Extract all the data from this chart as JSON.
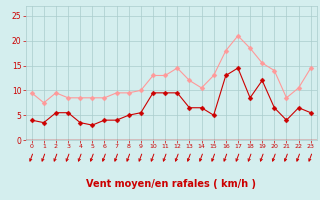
{
  "x": [
    0,
    1,
    2,
    3,
    4,
    5,
    6,
    7,
    8,
    9,
    10,
    11,
    12,
    13,
    14,
    15,
    16,
    17,
    18,
    19,
    20,
    21,
    22,
    23
  ],
  "wind_avg": [
    4.0,
    3.5,
    5.5,
    5.5,
    3.5,
    3.0,
    4.0,
    4.0,
    5.0,
    5.5,
    9.5,
    9.5,
    9.5,
    6.5,
    6.5,
    5.0,
    13.0,
    14.5,
    8.5,
    12.0,
    6.5,
    4.0,
    6.5,
    5.5
  ],
  "wind_gust": [
    9.5,
    7.5,
    9.5,
    8.5,
    8.5,
    8.5,
    8.5,
    9.5,
    9.5,
    10.0,
    13.0,
    13.0,
    14.5,
    12.0,
    10.5,
    13.0,
    18.0,
    21.0,
    18.5,
    15.5,
    14.0,
    8.5,
    10.5,
    14.5
  ],
  "color_avg": "#cc0000",
  "color_gust": "#ff9999",
  "bg_color": "#d4eeee",
  "grid_color": "#aacccc",
  "axis_color": "#cc0000",
  "xlabel": "Vent moyen/en rafales ( km/h )",
  "ylim": [
    0,
    27
  ],
  "yticks": [
    0,
    5,
    10,
    15,
    20,
    25
  ],
  "marker_size": 2.5,
  "line_width": 0.8
}
